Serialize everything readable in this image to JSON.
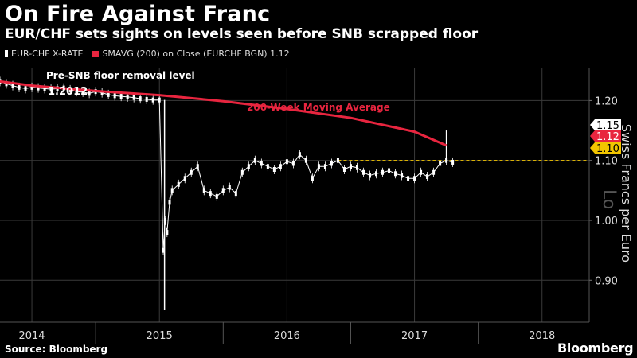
{
  "title": "On Fire Against Franc",
  "subtitle": "EUR/CHF sets sights on levels seen before SNB scrapped floor",
  "legend": {
    "series1": "EUR-CHF X-RATE",
    "series2": "SMAVG (200) on Close (EURCHF BGN) 1.12"
  },
  "source": "Source: Bloomberg",
  "brand": "Bloomberg",
  "colors": {
    "background": "#000000",
    "price": "#ffffff",
    "moving_average": "#e8253f",
    "floor_line": "#f2c500",
    "grid": "#3a3a3a"
  },
  "chart_data": {
    "type": "line",
    "title": "On Fire Against Franc",
    "subtitle": "EUR/CHF sets sights on levels seen before SNB scrapped floor",
    "ylabel": "Swiss Francs per Euro",
    "xlabel": "",
    "ylim": [
      0.83,
      1.255
    ],
    "xlim": [
      2013.75,
      2018.37
    ],
    "y_ticks": [
      0.9,
      1.0,
      1.1,
      1.2
    ],
    "y_tick_labels": [
      "0.90",
      "1.00",
      "1.10",
      "1.20"
    ],
    "x_ticks": [
      2014,
      2015,
      2016,
      2017,
      2018
    ],
    "x_tick_labels": [
      "2014",
      "2015",
      "2016",
      "2017",
      "2018"
    ],
    "grid": true,
    "legend_position": "top-left",
    "series": [
      {
        "name": "EUR-CHF X-RATE",
        "style": "candlestick",
        "color": "#ffffff",
        "x": [
          2013.75,
          2013.8,
          2013.85,
          2013.9,
          2013.95,
          2014.0,
          2014.05,
          2014.1,
          2014.15,
          2014.2,
          2014.25,
          2014.3,
          2014.35,
          2014.4,
          2014.45,
          2014.5,
          2014.55,
          2014.6,
          2014.65,
          2014.7,
          2014.75,
          2014.8,
          2014.85,
          2014.9,
          2014.95,
          2015.0,
          2015.03,
          2015.045,
          2015.06,
          2015.08,
          2015.1,
          2015.15,
          2015.2,
          2015.25,
          2015.3,
          2015.35,
          2015.4,
          2015.45,
          2015.5,
          2015.55,
          2015.6,
          2015.65,
          2015.7,
          2015.75,
          2015.8,
          2015.85,
          2015.9,
          2015.95,
          2016.0,
          2016.05,
          2016.1,
          2016.15,
          2016.2,
          2016.25,
          2016.3,
          2016.35,
          2016.4,
          2016.45,
          2016.5,
          2016.55,
          2016.6,
          2016.65,
          2016.7,
          2016.75,
          2016.8,
          2016.85,
          2016.9,
          2016.95,
          2017.0,
          2017.05,
          2017.1,
          2017.15,
          2017.2,
          2017.25,
          2017.3
        ],
        "values": [
          1.232,
          1.228,
          1.225,
          1.222,
          1.22,
          1.222,
          1.221,
          1.22,
          1.219,
          1.22,
          1.221,
          1.218,
          1.215,
          1.214,
          1.212,
          1.215,
          1.213,
          1.21,
          1.208,
          1.207,
          1.206,
          1.205,
          1.203,
          1.202,
          1.201,
          1.201,
          0.95,
          1.0,
          0.98,
          1.03,
          1.05,
          1.06,
          1.07,
          1.08,
          1.09,
          1.05,
          1.045,
          1.04,
          1.05,
          1.055,
          1.045,
          1.08,
          1.09,
          1.1,
          1.095,
          1.09,
          1.085,
          1.09,
          1.098,
          1.095,
          1.11,
          1.1,
          1.07,
          1.09,
          1.09,
          1.095,
          1.1,
          1.085,
          1.09,
          1.088,
          1.08,
          1.075,
          1.078,
          1.08,
          1.083,
          1.078,
          1.075,
          1.07,
          1.07,
          1.08,
          1.073,
          1.08,
          1.095,
          1.1,
          1.097
        ],
        "wicks": [
          {
            "x": 2015.04,
            "low": 0.85,
            "high": 1.201
          },
          {
            "x": 2017.25,
            "low": 1.1,
            "high": 1.15
          }
        ]
      },
      {
        "name": "SMAVG (200) on Close (EURCHF BGN)",
        "style": "line",
        "color": "#e8253f",
        "x": [
          2013.75,
          2014.0,
          2014.5,
          2015.0,
          2015.5,
          2016.0,
          2016.5,
          2017.0,
          2017.25
        ],
        "values": [
          1.232,
          1.225,
          1.216,
          1.209,
          1.199,
          1.186,
          1.171,
          1.148,
          1.125
        ]
      }
    ],
    "reference_lines": [
      {
        "y": 1.1,
        "style": "dashed",
        "color": "#f2c500"
      }
    ],
    "annotations": [
      {
        "text": "Pre-SNB floor removal level",
        "x": 2014.2,
        "y": 1.24
      },
      {
        "text": "1.2012",
        "x": 2014.3,
        "y": 1.212
      },
      {
        "text": "200-Week Moving Average",
        "x": 2015.9,
        "y": 1.165
      }
    ],
    "last_value_labels": [
      {
        "text": "1.15",
        "value": 1.15,
        "color": "#ffffff",
        "text_color": "#000000"
      },
      {
        "text": "1.12",
        "value": 1.12,
        "color": "#e8253f",
        "text_color": "#ffffff"
      },
      {
        "text": "1.10",
        "value": 1.1,
        "color": "#f2c500",
        "text_color": "#000000"
      }
    ],
    "scale_badge": "Lo"
  }
}
